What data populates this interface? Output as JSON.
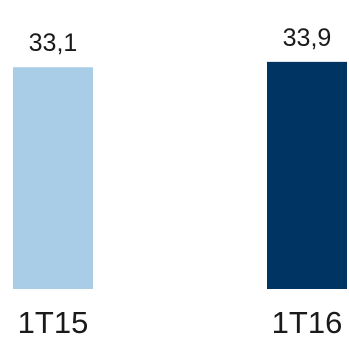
{
  "chart_data": {
    "type": "bar",
    "categories": [
      "1T15",
      "1T16"
    ],
    "values": [
      33.1,
      33.9
    ],
    "value_labels": [
      "33,1",
      "33,9"
    ],
    "colors": [
      "#a9cde6",
      "#003462"
    ],
    "title": "",
    "xlabel": "",
    "ylabel": "",
    "ylim": [
      0,
      34.5
    ],
    "grid": false,
    "legend": "none"
  }
}
